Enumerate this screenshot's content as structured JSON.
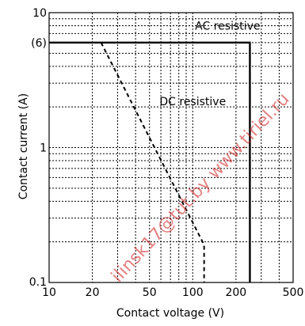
{
  "chart_data": {
    "type": "line",
    "title": "",
    "xlabel": "Contact voltage (V)",
    "ylabel": "Contact current (A)",
    "x_scale": "log",
    "y_scale": "log",
    "xlim": [
      10,
      500
    ],
    "ylim": [
      0.1,
      10
    ],
    "x_ticks": [
      {
        "value": 10,
        "label": "10"
      },
      {
        "value": 20,
        "label": "20"
      },
      {
        "value": 50,
        "label": "50"
      },
      {
        "value": 100,
        "label": "100"
      },
      {
        "value": 200,
        "label": "200"
      },
      {
        "value": 500,
        "label": "500"
      }
    ],
    "y_ticks": [
      {
        "value": 0.1,
        "label": "0.1"
      },
      {
        "value": 1,
        "label": "1"
      },
      {
        "value": 6,
        "label": "(6)"
      },
      {
        "value": 10,
        "label": "10"
      }
    ],
    "grid": true,
    "grid_style": "dotted",
    "series": [
      {
        "name": "AC resistive",
        "line_style": "solid",
        "color": "#000000",
        "points": [
          [
            10,
            6
          ],
          [
            250,
            6
          ],
          [
            250,
            0.1
          ]
        ]
      },
      {
        "name": "DC resistive",
        "line_style": "dashed",
        "color": "#000000",
        "points": [
          [
            23,
            6
          ],
          [
            120,
            0.19
          ],
          [
            120,
            0.1
          ]
        ]
      }
    ],
    "annotations": [
      {
        "text": "AC resistive",
        "x": 175,
        "y": 8,
        "anchor": "middle"
      },
      {
        "text": "DC resistive",
        "x": 100,
        "y": 2.2,
        "anchor": "middle"
      }
    ],
    "watermark": {
      "text": "ilinsk17@tut.by www.tiriel.ru",
      "color": "#d01818"
    }
  }
}
